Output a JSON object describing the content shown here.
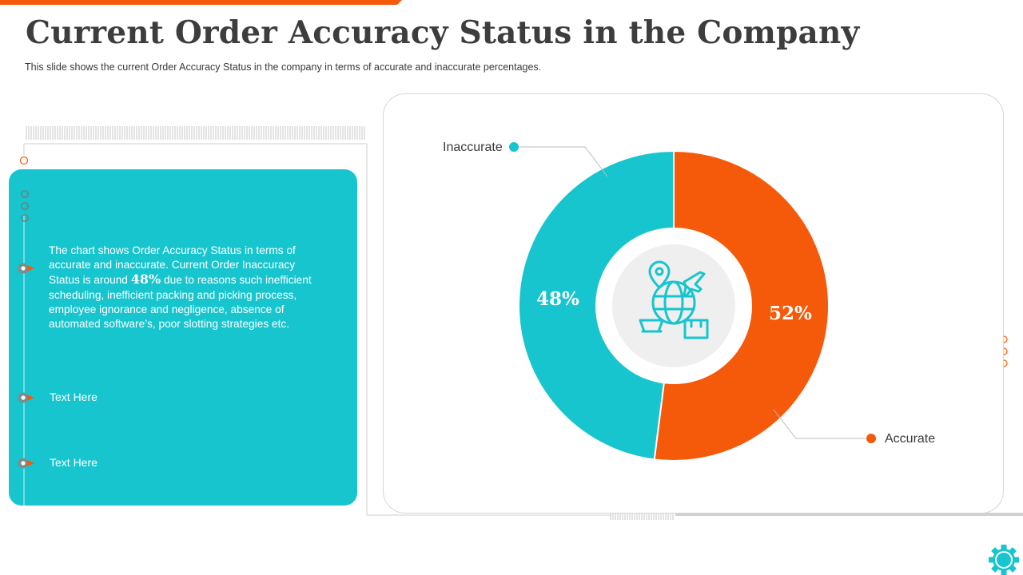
{
  "header": {
    "title": "Current Order Accuracy Status in the Company",
    "subtitle": "This slide shows the current Order Accuracy Status in the company in terms of accurate and inaccurate percentages."
  },
  "panel": {
    "description_before": "The chart shows Order Accuracy Status in terms of accurate and inaccurate. Current Order Inaccuracy Status is around ",
    "description_highlight": "48%",
    "description_after": " due to reasons such inefficient scheduling, inefficient packing and picking process, employee ignorance and negligence, absence of automated software’s, poor slotting strategies etc.",
    "item_1": "Text Here",
    "item_2": "Text Here"
  },
  "chart_data": {
    "type": "pie",
    "donut": true,
    "categories": [
      "Accurate",
      "Inaccurate"
    ],
    "values": [
      52,
      48
    ],
    "value_labels": [
      "52%",
      "48%"
    ],
    "colors": [
      "#f55a0a",
      "#17c5cf"
    ],
    "center_icon": "global-logistics-icon"
  },
  "colors": {
    "accent_orange": "#f55a0a",
    "accent_teal": "#17c5cf",
    "title": "#3d3d3d"
  }
}
